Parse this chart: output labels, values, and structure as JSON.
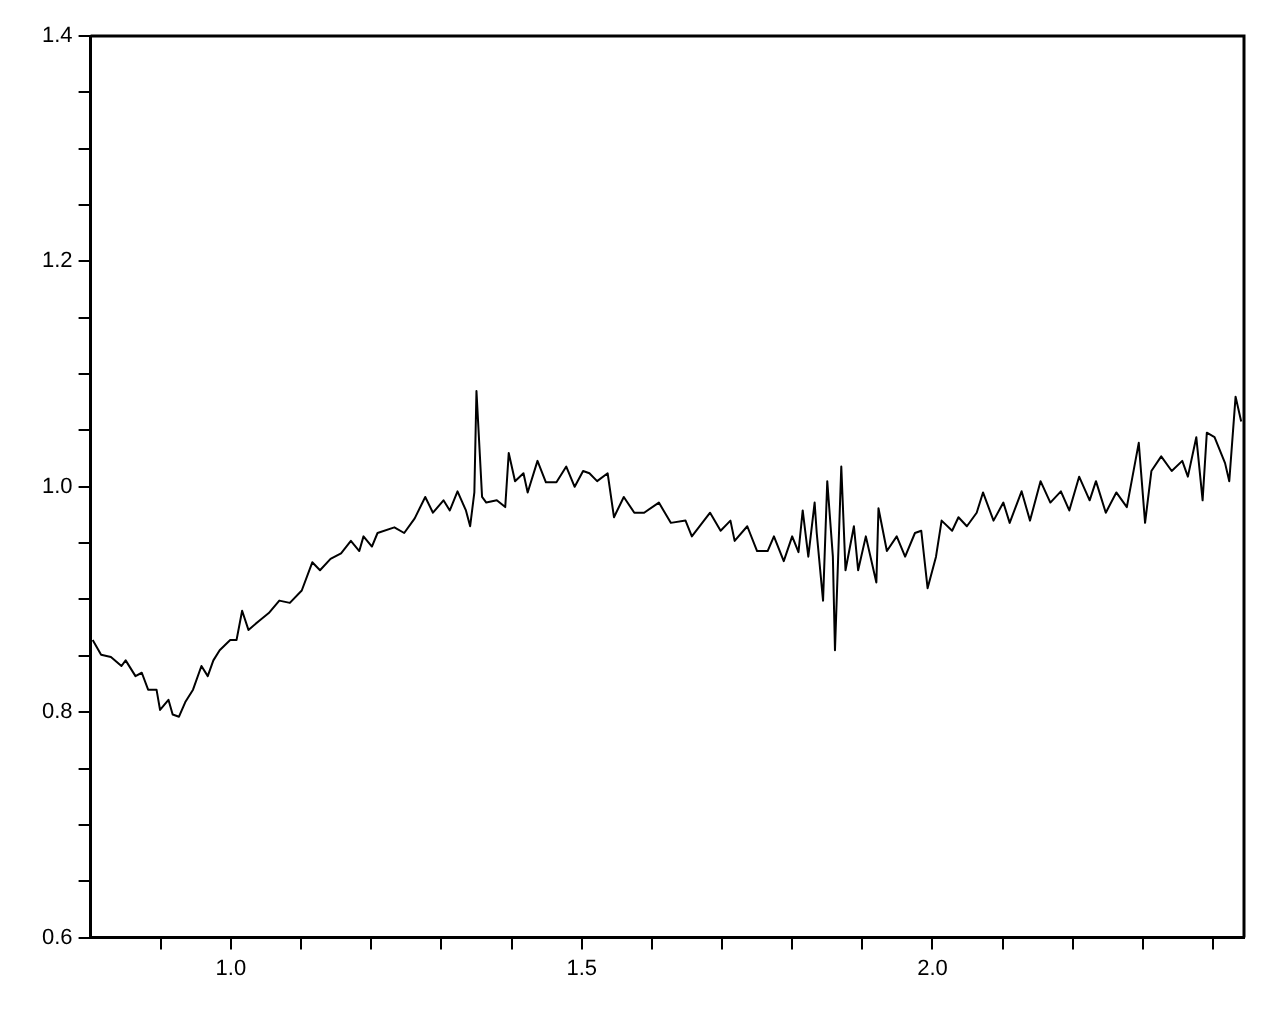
{
  "chart_data": {
    "type": "line",
    "xlim": [
      0.8,
      2.444
    ],
    "ylim": [
      0.6,
      1.4
    ],
    "xticks": [
      {
        "value": 0.9,
        "label": null
      },
      {
        "value": 1,
        "label": "1.0"
      },
      {
        "value": 1.1,
        "label": null
      },
      {
        "value": 1.2,
        "label": null
      },
      {
        "value": 1.3,
        "label": null
      },
      {
        "value": 1.4,
        "label": null
      },
      {
        "value": 1.5,
        "label": "1.5"
      },
      {
        "value": 1.6,
        "label": null
      },
      {
        "value": 1.7,
        "label": null
      },
      {
        "value": 1.8,
        "label": null
      },
      {
        "value": 1.9,
        "label": null
      },
      {
        "value": 2,
        "label": "2.0"
      },
      {
        "value": 2.1,
        "label": null
      },
      {
        "value": 2.2,
        "label": null
      },
      {
        "value": 2.3,
        "label": null
      },
      {
        "value": 2.4,
        "label": null
      }
    ],
    "yticks": [
      0.6,
      {
        "value": 0.65,
        "label": null
      },
      {
        "value": 0.7,
        "label": null
      },
      {
        "value": 0.75,
        "label": null
      },
      0.8,
      {
        "value": 0.85,
        "label": null
      },
      {
        "value": 0.9,
        "label": null
      },
      {
        "value": 0.95,
        "label": null
      },
      {
        "value": 1,
        "label": "1.0"
      },
      {
        "value": 1.05,
        "label": null
      },
      {
        "value": 1.1,
        "label": null
      },
      {
        "value": 1.15,
        "label": null
      },
      1.2,
      {
        "value": 1.25,
        "label": null
      },
      {
        "value": 1.3,
        "label": null
      },
      {
        "value": 1.35,
        "label": null
      },
      1.4
    ],
    "grid": false,
    "legend": false,
    "marker": "none",
    "line_style": "solid",
    "series": [
      {
        "color": "#000000",
        "x": [
          0.803,
          0.815,
          0.829,
          0.844,
          0.85,
          0.864,
          0.873,
          0.882,
          0.894,
          0.899,
          0.911,
          0.917,
          0.926,
          0.935,
          0.946,
          0.958,
          0.967,
          0.975,
          0.984,
          0.999,
          1.008,
          1.016,
          1.025,
          1.04,
          1.054,
          1.069,
          1.084,
          1.101,
          1.116,
          1.127,
          1.142,
          1.157,
          1.171,
          1.183,
          1.189,
          1.201,
          1.209,
          1.233,
          1.247,
          1.262,
          1.277,
          1.288,
          1.303,
          1.312,
          1.323,
          1.335,
          1.341,
          1.347,
          1.35,
          1.358,
          1.364,
          1.379,
          1.391,
          1.396,
          1.405,
          1.417,
          1.423,
          1.437,
          1.449,
          1.464,
          1.478,
          1.49,
          1.502,
          1.511,
          1.522,
          1.537,
          1.546,
          1.56,
          1.575,
          1.589,
          1.61,
          1.627,
          1.648,
          1.657,
          1.683,
          1.698,
          1.712,
          1.718,
          1.736,
          1.75,
          1.765,
          1.774,
          1.788,
          1.8,
          1.809,
          1.815,
          1.823,
          1.832,
          1.835,
          1.844,
          1.85,
          1.858,
          1.861,
          1.87,
          1.876,
          1.888,
          1.894,
          1.905,
          1.92,
          1.923,
          1.935,
          1.949,
          1.961,
          1.975,
          1.984,
          1.993,
          2.005,
          2.013,
          2.028,
          2.037,
          2.049,
          2.063,
          2.072,
          2.087,
          2.101,
          2.11,
          2.127,
          2.139,
          2.154,
          2.168,
          2.183,
          2.195,
          2.209,
          2.224,
          2.233,
          2.247,
          2.262,
          2.277,
          2.294,
          2.303,
          2.312,
          2.326,
          2.341,
          2.356,
          2.364,
          2.376,
          2.385,
          2.391,
          2.402,
          2.417,
          2.423,
          2.432,
          2.44
        ],
        "values": [
          0.864,
          0.851,
          0.849,
          0.841,
          0.846,
          0.832,
          0.835,
          0.82,
          0.82,
          0.802,
          0.811,
          0.798,
          0.796,
          0.809,
          0.82,
          0.841,
          0.832,
          0.846,
          0.855,
          0.864,
          0.864,
          0.89,
          0.873,
          0.881,
          0.888,
          0.899,
          0.897,
          0.908,
          0.933,
          0.926,
          0.936,
          0.941,
          0.952,
          0.943,
          0.956,
          0.947,
          0.959,
          0.964,
          0.959,
          0.972,
          0.991,
          0.977,
          0.988,
          0.979,
          0.996,
          0.979,
          0.965,
          0.995,
          1.085,
          0.991,
          0.986,
          0.988,
          0.982,
          1.03,
          1.005,
          1.012,
          0.995,
          1.023,
          1.004,
          1.004,
          1.018,
          1.0,
          1.014,
          1.012,
          1.005,
          1.012,
          0.973,
          0.991,
          0.977,
          0.977,
          0.986,
          0.968,
          0.97,
          0.956,
          0.977,
          0.961,
          0.97,
          0.952,
          0.965,
          0.943,
          0.943,
          0.956,
          0.934,
          0.956,
          0.942,
          0.979,
          0.938,
          0.986,
          0.959,
          0.899,
          1.005,
          0.938,
          0.855,
          1.018,
          0.926,
          0.965,
          0.926,
          0.956,
          0.915,
          0.981,
          0.943,
          0.956,
          0.938,
          0.959,
          0.961,
          0.91,
          0.938,
          0.97,
          0.961,
          0.973,
          0.965,
          0.977,
          0.995,
          0.97,
          0.986,
          0.968,
          0.996,
          0.97,
          1.005,
          0.986,
          0.996,
          0.979,
          1.009,
          0.988,
          1.005,
          0.977,
          0.995,
          0.982,
          1.039,
          0.968,
          1.014,
          1.027,
          1.014,
          1.023,
          1.009,
          1.044,
          0.988,
          1.048,
          1.044,
          1.021,
          1.005,
          1.08,
          1.058
        ]
      }
    ]
  }
}
